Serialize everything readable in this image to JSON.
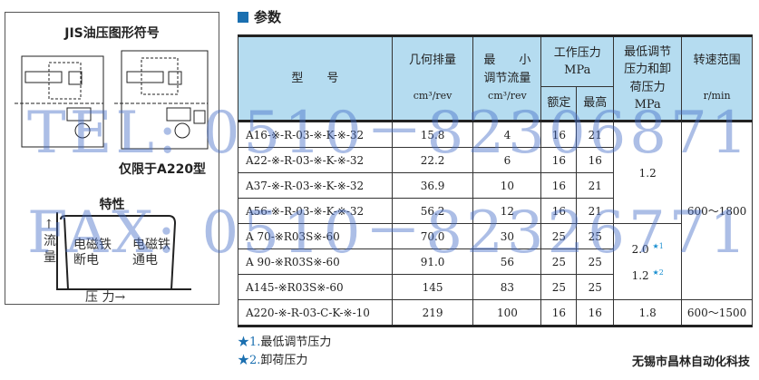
{
  "left_panel": {
    "symbol_title": "JIS油压图形符号",
    "a220_note": "仅限于A220型",
    "char_title": "特性",
    "flow_label": "流量",
    "pressure_label": "压 力→",
    "off_label": "电磁铁\n断电",
    "on_label": "电磁铁\n通电"
  },
  "section_title": "参数",
  "table": {
    "headers": {
      "model": "型　　号",
      "disp": "几何排量",
      "disp_unit": "cm³/rev",
      "minflow": "最　　小\n调节流量",
      "minflow_unit": "cm³/rev",
      "work": "工作压力\nMPa",
      "rated": "额定",
      "max": "最高",
      "lowp": "最低调节\n压力和卸\n荷压力\nMPa",
      "speed": "转速范围",
      "speed_unit": "r/min"
    },
    "rows": [
      {
        "model": "A16-※-R-03-※-K-※-32",
        "disp": "15.8",
        "minflow": "4",
        "rated": "16",
        "max": "21"
      },
      {
        "model": "A22-※-R-03-※-K-※-32",
        "disp": "22.2",
        "minflow": "6",
        "rated": "16",
        "max": "16"
      },
      {
        "model": "A37-※-R-03-※-K-※-32",
        "disp": "36.9",
        "minflow": "10",
        "rated": "16",
        "max": "21"
      },
      {
        "model": "A56-※-R-03-※-K-※-32",
        "disp": "56.2",
        "minflow": "12",
        "rated": "16",
        "max": "21"
      },
      {
        "model": "A 70-※R03S※-60",
        "disp": "70.0",
        "minflow": "30",
        "rated": "25",
        "max": "25"
      },
      {
        "model": "A 90-※R03S※-60",
        "disp": "91.0",
        "minflow": "56",
        "rated": "25",
        "max": "25"
      },
      {
        "model": "A145-※R03S※-60",
        "disp": "145",
        "minflow": "83",
        "rated": "25",
        "max": "25"
      },
      {
        "model": "A220-※-R-03-C-K-※-10",
        "disp": "219",
        "minflow": "100",
        "rated": "16",
        "max": "16"
      }
    ],
    "lowp_group1": "1.2",
    "lowp_group2a": "2.0",
    "lowp_group2b": "1.2",
    "lowp_last": "1.8",
    "star1": "★1",
    "star2": "★2",
    "speed_group": "600～1800",
    "speed_last": "600～1500"
  },
  "notes": [
    {
      "star": "★1.",
      "text": "最低调节压力"
    },
    {
      "star": "★2.",
      "text": "卸荷压力"
    }
  ],
  "company": "无锡市昌林自动化科技",
  "watermark": {
    "tel": "TEL: 0510－82306871",
    "fax": "FAX: 0510－82326771"
  }
}
